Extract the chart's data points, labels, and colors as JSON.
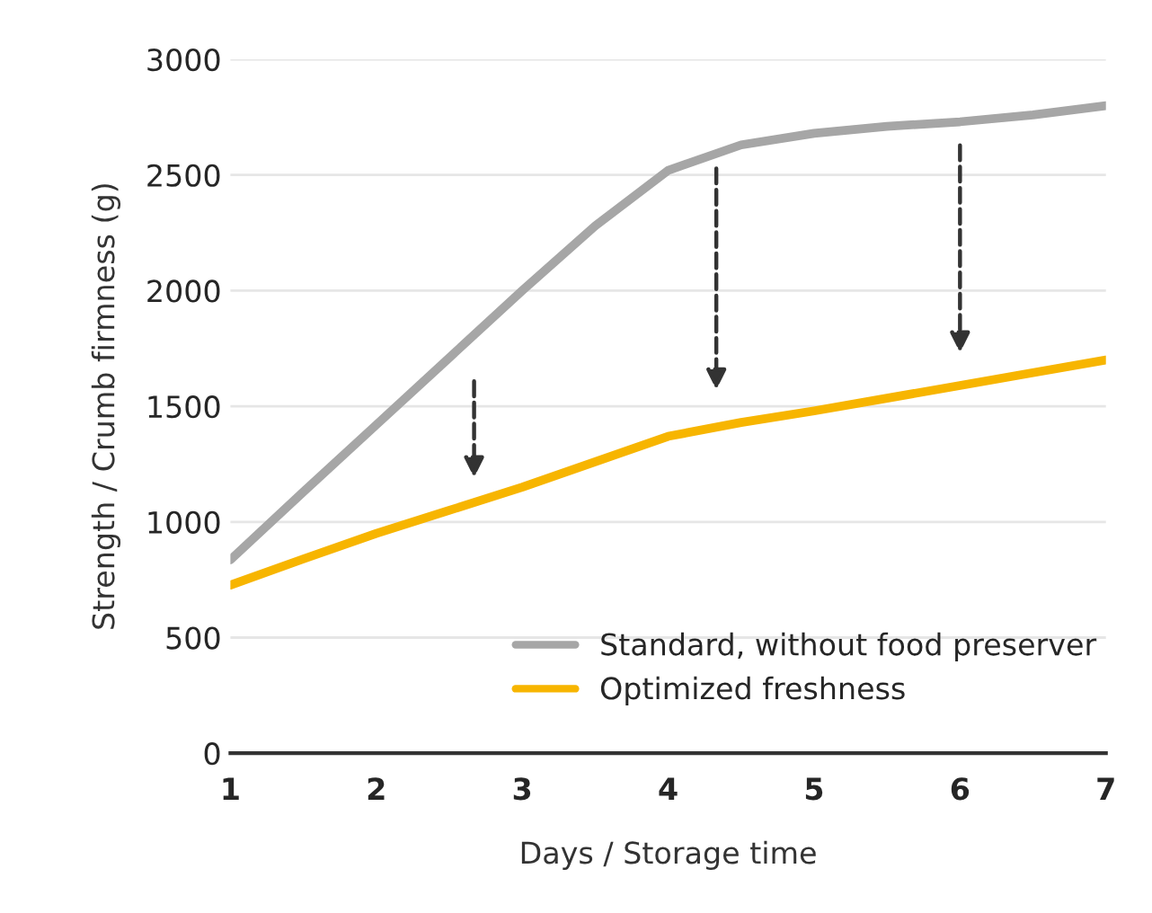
{
  "chart_data": {
    "type": "line",
    "xlabel": "Days / Storage time",
    "ylabel": "Strength / Crumb firmness (g)",
    "x": [
      1,
      1.5,
      2,
      2.5,
      3,
      3.5,
      4,
      4.5,
      5,
      5.5,
      6,
      6.5,
      7
    ],
    "series": [
      {
        "name": "Standard, without food preserver",
        "color": "#a6a6a6",
        "values": [
          836,
          1130,
          1420,
          1710,
          2000,
          2280,
          2520,
          2630,
          2680,
          2710,
          2730,
          2760,
          2800
        ]
      },
      {
        "name": "Optimized freshness",
        "color": "#f7b500",
        "values": [
          727,
          840,
          950,
          1050,
          1150,
          1260,
          1370,
          1430,
          1480,
          1535,
          1590,
          1645,
          1700
        ]
      }
    ],
    "xlim": [
      1,
      7
    ],
    "xticks": [
      1,
      2,
      3,
      4,
      5,
      6,
      7
    ],
    "ylim": [
      0,
      3000
    ],
    "yticks": [
      0,
      500,
      1000,
      1500,
      2000,
      2500,
      3000
    ],
    "grid": "y",
    "legend": "bottom right",
    "marker": "none",
    "line_style": "solid"
  }
}
